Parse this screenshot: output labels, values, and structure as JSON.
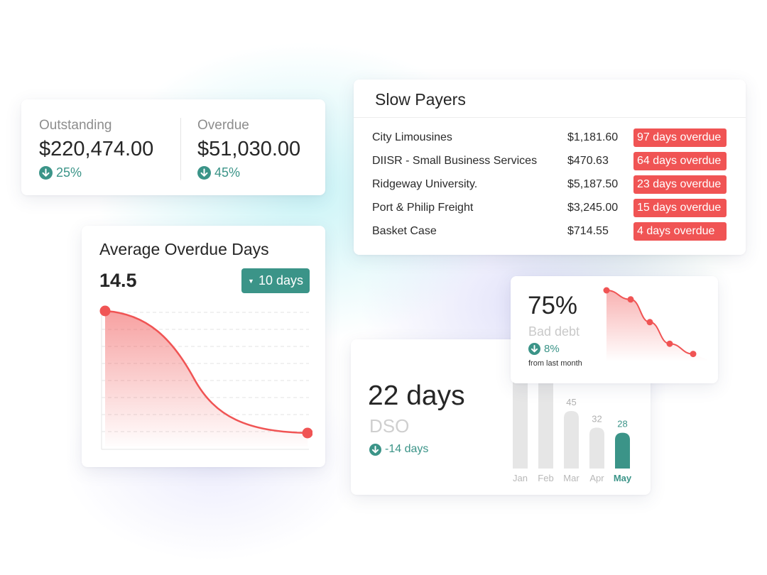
{
  "summary": {
    "outstanding": {
      "label": "Outstanding",
      "value": "$220,474.00",
      "change": "25%"
    },
    "overdue": {
      "label": "Overdue",
      "value": "$51,030.00",
      "change": "45%"
    }
  },
  "average_overdue": {
    "title": "Average Overdue Days",
    "value": "14.5",
    "filter_label": "10 days",
    "filter_icon": "caret-down-icon"
  },
  "slow_payers": {
    "title": "Slow Payers",
    "rows": [
      {
        "name": "City Limousines",
        "amount": "$1,181.60",
        "status": "97 days overdue"
      },
      {
        "name": "DIISR - Small Business Services",
        "amount": "$470.63",
        "status": "64 days overdue"
      },
      {
        "name": "Ridgeway University.",
        "amount": "$5,187.50",
        "status": "23 days overdue"
      },
      {
        "name": "Port & Philip Freight",
        "amount": "$3,245.00",
        "status": "15 days overdue"
      },
      {
        "name": "Basket Case",
        "amount": "$714.55",
        "status": "4 days overdue"
      }
    ]
  },
  "dso": {
    "value": "22 days",
    "label": "DSO",
    "change": "-14 days"
  },
  "bad_debt": {
    "value": "75%",
    "label": "Bad debt",
    "change": "8%",
    "sub": "from last month"
  },
  "colors": {
    "accent": "#3b9488",
    "danger": "#f05454",
    "bar_muted": "#e6e6e6"
  },
  "chart_data": [
    {
      "type": "area",
      "x": [
        0,
        1
      ],
      "values": [
        1,
        0
      ],
      "xlabel": "",
      "ylabel": "",
      "grid": true
    },
    {
      "type": "bar",
      "categories": [
        "Jan",
        "Feb",
        "Mar",
        "Apr",
        "May"
      ],
      "values": [
        null,
        null,
        45,
        32,
        28
      ],
      "highlight": "May",
      "data_labels": [
        "",
        "",
        "45",
        "32",
        "28"
      ]
    },
    {
      "type": "line",
      "x": [
        1,
        2,
        3,
        4,
        5
      ],
      "values": [
        100,
        92,
        72,
        53,
        44
      ]
    }
  ]
}
